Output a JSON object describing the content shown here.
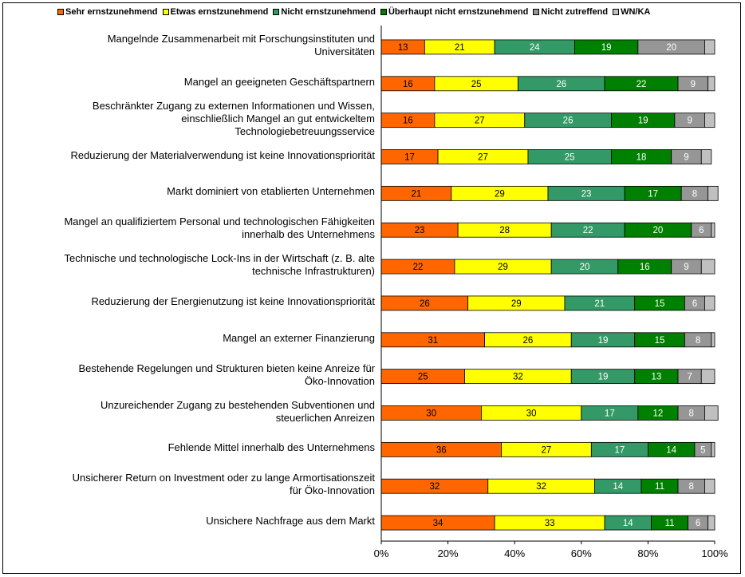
{
  "chart_data": {
    "type": "bar",
    "orientation": "horizontal",
    "stacked": true,
    "percent": true,
    "categories": [
      "Mangelnde Zusammenarbeit mit Forschungsinstituten und Universitäten",
      "Mangel an geeigneten Geschäftspartnern",
      "Beschränkter Zugang zu externen Informationen und Wissen, einschließlich Mangel an gut entwickeltem Technologiebetreuungsservice",
      "Reduzierung der Materialverwendung ist keine Innovationspriorität",
      "Markt dominiert von etablierten Unternehmen",
      "Mangel an qualifiziertem Personal und technologischen Fähigkeiten innerhalb des Unternehmens",
      "Technische und technologische Lock-Ins in der Wirtschaft (z. B. alte technische Infrastrukturen)",
      "Reduzierung der Energienutzung ist keine Innovationspriorität",
      "Mangel an externer Finanzierung",
      "Bestehende Regelungen und Strukturen bieten keine Anreize für Öko-Innovation",
      "Unzureichender Zugang zu bestehenden Subventionen und steuerlichen Anreizen",
      "Fehlende Mittel innerhalb des Unternehmens",
      "Unsicherer Return on Investment oder zu lange Armortisationszeit für Öko-Innovation",
      "Unsichere Nachfrage aus dem Markt"
    ],
    "category_lines": [
      [
        "Mangelnde Zusammenarbeit mit Forschungsinstituten und",
        "Universitäten"
      ],
      [
        "Mangel an geeigneten Geschäftspartnern"
      ],
      [
        "Beschränkter Zugang zu externen Informationen und Wissen,",
        "einschließlich Mangel an gut entwickeltem",
        "Technologiebetreuungsservice"
      ],
      [
        "Reduzierung der Materialverwendung ist keine Innovationspriorität"
      ],
      [
        "Markt dominiert von etablierten Unternehmen"
      ],
      [
        "Mangel an qualifiziertem Personal und technologischen Fähigkeiten",
        "innerhalb des Unternehmens"
      ],
      [
        "Technische und technologische Lock-Ins in der Wirtschaft (z. B. alte",
        "technische Infrastrukturen)"
      ],
      [
        "Reduzierung der Energienutzung ist keine Innovationspriorität"
      ],
      [
        "Mangel an externer Finanzierung"
      ],
      [
        "Bestehende Regelungen und Strukturen bieten keine Anreize für",
        "Öko-Innovation"
      ],
      [
        "Unzureichender Zugang zu bestehenden Subventionen und",
        "steuerlichen Anreizen"
      ],
      [
        "Fehlende Mittel innerhalb des Unternehmens"
      ],
      [
        "Unsicherer Return on Investment oder zu lange Armortisationszeit",
        "für Öko-Innovation"
      ],
      [
        "Unsichere Nachfrage aus dem Markt"
      ]
    ],
    "series": [
      {
        "name": "Sehr ernstzunehmend",
        "color": "#FF6600",
        "label_color": "#000000",
        "values": [
          13,
          16,
          16,
          17,
          21,
          23,
          22,
          26,
          31,
          25,
          30,
          36,
          32,
          34
        ]
      },
      {
        "name": "Etwas ernstzunehmend",
        "color": "#FFFF00",
        "label_color": "#000000",
        "values": [
          21,
          25,
          27,
          27,
          29,
          28,
          29,
          29,
          26,
          32,
          30,
          27,
          32,
          33
        ]
      },
      {
        "name": "Nicht ernstzunehmend",
        "color": "#339966",
        "label_color": "#ffffff",
        "values": [
          24,
          26,
          26,
          25,
          23,
          22,
          20,
          21,
          19,
          19,
          17,
          17,
          14,
          14
        ]
      },
      {
        "name": "Überhaupt nicht ernstzunehmend",
        "color": "#008000",
        "label_color": "#ffffff",
        "values": [
          19,
          22,
          19,
          18,
          17,
          20,
          16,
          15,
          15,
          13,
          12,
          14,
          11,
          11
        ]
      },
      {
        "name": "Nicht zutreffend",
        "color": "#969696",
        "label_color": "#ffffff",
        "values": [
          20,
          9,
          9,
          9,
          8,
          6,
          9,
          6,
          8,
          7,
          8,
          5,
          8,
          6
        ]
      },
      {
        "name": "WN/KA",
        "color": "#C0C0C0",
        "label_color": "#000000",
        "values": [
          3,
          2,
          3,
          3,
          3,
          1,
          4,
          3,
          1,
          4,
          4,
          1,
          3,
          2
        ]
      }
    ],
    "hidden_value_labels": [
      "WN/KA"
    ],
    "xlim": [
      0,
      100
    ],
    "xticks": [
      "0%",
      "20%",
      "40%",
      "60%",
      "80%",
      "100%"
    ],
    "grid": false,
    "legend_position": "top",
    "title": "",
    "xlabel": "",
    "ylabel": ""
  }
}
